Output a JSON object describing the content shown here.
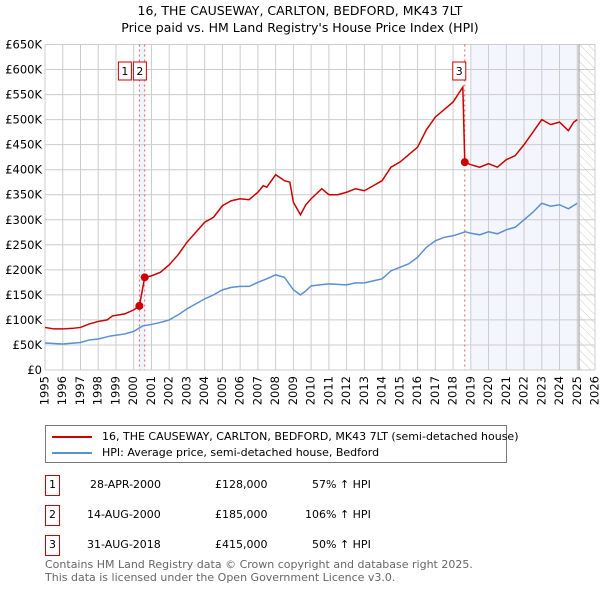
{
  "title_line1": "16, THE CAUSEWAY, CARLTON, BEDFORD, MK43 7LT",
  "title_line2": "Price paid vs. HM Land Registry's House Price Index (HPI)",
  "chart_data": {
    "type": "line",
    "title": "16, THE CAUSEWAY, CARLTON, BEDFORD, MK43 7LT — Price paid vs. HM Land Registry's House Price Index (HPI)",
    "xlim": [
      1995,
      2026
    ],
    "ylim": [
      0,
      650000
    ],
    "x_ticks": [
      "1995",
      "1996",
      "1997",
      "1998",
      "1999",
      "2000",
      "2001",
      "2002",
      "2003",
      "2004",
      "2005",
      "2006",
      "2007",
      "2008",
      "2009",
      "2010",
      "2011",
      "2012",
      "2013",
      "2014",
      "2015",
      "2016",
      "2017",
      "2018",
      "2019",
      "2020",
      "2021",
      "2022",
      "2023",
      "2024",
      "2025",
      "2026"
    ],
    "y_ticks": [
      "£0",
      "£50K",
      "£100K",
      "£150K",
      "£200K",
      "£250K",
      "£300K",
      "£350K",
      "£400K",
      "£450K",
      "£500K",
      "£550K",
      "£600K",
      "£650K"
    ],
    "grid": true,
    "colors": {
      "property": "#cc0000",
      "hpi": "#5b8fd4"
    },
    "series": [
      {
        "name": "16, THE CAUSEWAY, CARLTON, BEDFORD, MK43 7LT (semi-detached house)",
        "points": [
          [
            1995,
            85
          ],
          [
            1995.5,
            82
          ],
          [
            1996,
            82
          ],
          [
            1996.5,
            83
          ],
          [
            1997,
            85
          ],
          [
            1997.5,
            92
          ],
          [
            1998,
            97
          ],
          [
            1998.5,
            100
          ],
          [
            1998.8,
            108
          ],
          [
            1999.5,
            112
          ],
          [
            2000,
            120
          ],
          [
            2000.32,
            128
          ],
          [
            2000.62,
            185
          ],
          [
            2001,
            188
          ],
          [
            2001.5,
            195
          ],
          [
            2002,
            210
          ],
          [
            2002.5,
            230
          ],
          [
            2003,
            255
          ],
          [
            2003.5,
            275
          ],
          [
            2004,
            295
          ],
          [
            2004.5,
            305
          ],
          [
            2005,
            328
          ],
          [
            2005.5,
            338
          ],
          [
            2006,
            342
          ],
          [
            2006.5,
            340
          ],
          [
            2007,
            355
          ],
          [
            2007.3,
            368
          ],
          [
            2007.5,
            365
          ],
          [
            2008,
            390
          ],
          [
            2008.5,
            378
          ],
          [
            2008.8,
            375
          ],
          [
            2009,
            335
          ],
          [
            2009.4,
            310
          ],
          [
            2009.7,
            330
          ],
          [
            2010,
            342
          ],
          [
            2010.6,
            362
          ],
          [
            2011,
            350
          ],
          [
            2011.5,
            350
          ],
          [
            2012,
            355
          ],
          [
            2012.5,
            362
          ],
          [
            2013,
            358
          ],
          [
            2013.5,
            368
          ],
          [
            2014,
            378
          ],
          [
            2014.5,
            405
          ],
          [
            2015,
            415
          ],
          [
            2015.5,
            430
          ],
          [
            2016,
            445
          ],
          [
            2016.5,
            480
          ],
          [
            2017,
            505
          ],
          [
            2017.5,
            520
          ],
          [
            2018,
            535
          ],
          [
            2018.55,
            565
          ],
          [
            2018.66,
            415
          ],
          [
            2019,
            410
          ],
          [
            2019.5,
            405
          ],
          [
            2020,
            412
          ],
          [
            2020.5,
            405
          ],
          [
            2021,
            420
          ],
          [
            2021.5,
            428
          ],
          [
            2022,
            450
          ],
          [
            2022.5,
            475
          ],
          [
            2023,
            500
          ],
          [
            2023.5,
            490
          ],
          [
            2024,
            495
          ],
          [
            2024.5,
            478
          ],
          [
            2024.8,
            495
          ],
          [
            2025,
            500
          ]
        ]
      },
      {
        "name": "HPI: Average price, semi-detached house, Bedford",
        "points": [
          [
            1995,
            54
          ],
          [
            1996,
            52
          ],
          [
            1997,
            55
          ],
          [
            1997.5,
            60
          ],
          [
            1998,
            62
          ],
          [
            1998.7,
            68
          ],
          [
            1999.5,
            72
          ],
          [
            2000,
            77
          ],
          [
            2000.5,
            88
          ],
          [
            2001,
            91
          ],
          [
            2001.5,
            95
          ],
          [
            2002,
            100
          ],
          [
            2002.5,
            110
          ],
          [
            2003,
            122
          ],
          [
            2003.5,
            132
          ],
          [
            2004,
            142
          ],
          [
            2004.5,
            150
          ],
          [
            2005,
            160
          ],
          [
            2005.5,
            165
          ],
          [
            2006,
            167
          ],
          [
            2006.5,
            167
          ],
          [
            2007,
            175
          ],
          [
            2007.5,
            182
          ],
          [
            2008,
            190
          ],
          [
            2008.5,
            185
          ],
          [
            2009,
            160
          ],
          [
            2009.4,
            150
          ],
          [
            2009.7,
            158
          ],
          [
            2010,
            168
          ],
          [
            2011,
            172
          ],
          [
            2012,
            170
          ],
          [
            2012.5,
            174
          ],
          [
            2013,
            174
          ],
          [
            2013.5,
            178
          ],
          [
            2014,
            182
          ],
          [
            2014.5,
            198
          ],
          [
            2015,
            205
          ],
          [
            2015.5,
            212
          ],
          [
            2016,
            225
          ],
          [
            2016.5,
            245
          ],
          [
            2017,
            258
          ],
          [
            2017.5,
            265
          ],
          [
            2018,
            268
          ],
          [
            2018.7,
            276
          ],
          [
            2019,
            273
          ],
          [
            2019.5,
            270
          ],
          [
            2020,
            276
          ],
          [
            2020.5,
            272
          ],
          [
            2021,
            280
          ],
          [
            2021.5,
            285
          ],
          [
            2022,
            300
          ],
          [
            2022.5,
            315
          ],
          [
            2023,
            333
          ],
          [
            2023.5,
            327
          ],
          [
            2024,
            330
          ],
          [
            2024.5,
            322
          ],
          [
            2025,
            333
          ]
        ]
      }
    ],
    "sales": [
      {
        "label": "1",
        "x": 2000.32,
        "value": 128
      },
      {
        "label": "2",
        "x": 2000.62,
        "value": 185
      },
      {
        "label": "3",
        "x": 2018.66,
        "value": 415
      }
    ],
    "projection_start": 2019.0,
    "data_end": 2025.1
  },
  "legend": [
    {
      "label": "16, THE CAUSEWAY, CARLTON, BEDFORD, MK43 7LT (semi-detached house)",
      "color": "#cc0000"
    },
    {
      "label": "HPI: Average price, semi-detached house, Bedford",
      "color": "#5b8fd4"
    }
  ],
  "transactions": [
    {
      "num": "1",
      "date": "28-APR-2000",
      "price": "£128,000",
      "hpi": "57% ↑ HPI"
    },
    {
      "num": "2",
      "date": "14-AUG-2000",
      "price": "£185,000",
      "hpi": "106% ↑ HPI"
    },
    {
      "num": "3",
      "date": "31-AUG-2018",
      "price": "£415,000",
      "hpi": "50% ↑ HPI"
    }
  ],
  "footer_line1": "Contains HM Land Registry data © Crown copyright and database right 2025.",
  "footer_line2": "This data is licensed under the Open Government Licence v3.0."
}
